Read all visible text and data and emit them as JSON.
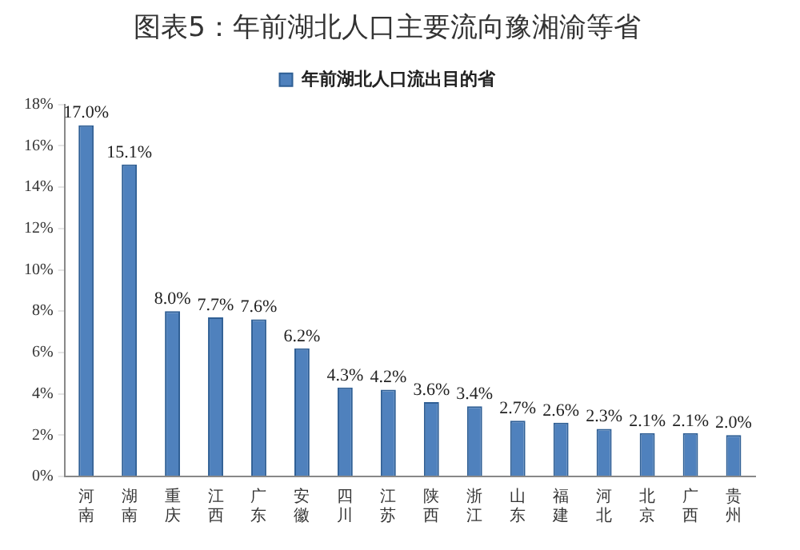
{
  "chart_data": {
    "type": "bar",
    "title": "图表5：年前湖北人口主要流向豫湘渝等省",
    "categories": [
      "河南",
      "湖南",
      "重庆",
      "江西",
      "广东",
      "安徽",
      "四川",
      "江苏",
      "陕西",
      "浙江",
      "山东",
      "福建",
      "河北",
      "北京",
      "广西",
      "贵州"
    ],
    "series": [
      {
        "name": "年前湖北人口流出目的省",
        "color": "#4f81bd",
        "values": [
          17.0,
          15.1,
          8.0,
          7.7,
          7.6,
          6.2,
          4.3,
          4.2,
          3.6,
          3.4,
          2.7,
          2.6,
          2.3,
          2.1,
          2.1,
          2.0
        ],
        "value_labels": [
          "17.0%",
          "15.1%",
          "8.0%",
          "7.7%",
          "7.6%",
          "6.2%",
          "4.3%",
          "4.2%",
          "3.6%",
          "3.4%",
          "2.7%",
          "2.6%",
          "2.3%",
          "2.1%",
          "2.1%",
          "2.0%"
        ]
      }
    ],
    "ylim": [
      0,
      18
    ],
    "yticks": [
      {
        "value": 0,
        "label": "0%"
      },
      {
        "value": 2,
        "label": "2%"
      },
      {
        "value": 4,
        "label": "4%"
      },
      {
        "value": 6,
        "label": "6%"
      },
      {
        "value": 8,
        "label": "8%"
      },
      {
        "value": 10,
        "label": "10%"
      },
      {
        "value": 12,
        "label": "12%"
      },
      {
        "value": 14,
        "label": "14%"
      },
      {
        "value": 16,
        "label": "16%"
      },
      {
        "value": 18,
        "label": "18%"
      }
    ],
    "grid": false,
    "legend": "top"
  }
}
